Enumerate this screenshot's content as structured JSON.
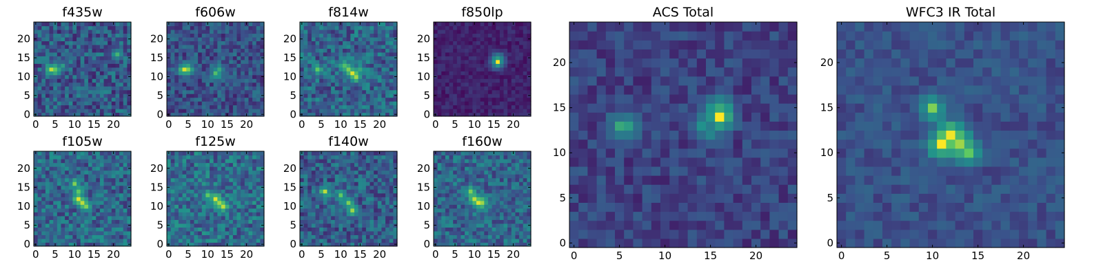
{
  "figure": {
    "colormap": "viridis",
    "colormap_stops": [
      "#440154",
      "#3b528b",
      "#21918c",
      "#5ec962",
      "#fde725"
    ]
  },
  "chart_data": [
    {
      "type": "heatmap",
      "title": "f435w",
      "grid_size": 25,
      "xlim": [
        0,
        24
      ],
      "ylim": [
        0,
        24
      ],
      "xticks": [
        0,
        5,
        10,
        15,
        20
      ],
      "yticks": [
        0,
        5,
        10,
        15,
        20
      ],
      "hotspots": [
        {
          "x": 4,
          "y": 12,
          "value": 0.9
        },
        {
          "x": 5,
          "y": 12,
          "value": 0.75
        },
        {
          "x": 7,
          "y": 13,
          "value": 0.55
        },
        {
          "x": 21,
          "y": 16,
          "value": 0.65
        },
        {
          "x": 12,
          "y": 11,
          "value": 0.4
        }
      ],
      "background_level": 0.28,
      "noise_level": 0.18
    },
    {
      "type": "heatmap",
      "title": "f606w",
      "grid_size": 25,
      "xlim": [
        0,
        24
      ],
      "ylim": [
        0,
        24
      ],
      "xticks": [
        0,
        5,
        10,
        15,
        20
      ],
      "yticks": [
        0,
        5,
        10,
        15,
        20
      ],
      "hotspots": [
        {
          "x": 4,
          "y": 12,
          "value": 0.95
        },
        {
          "x": 5,
          "y": 12,
          "value": 0.8
        },
        {
          "x": 12,
          "y": 11,
          "value": 0.7
        },
        {
          "x": 13,
          "y": 12,
          "value": 0.6
        },
        {
          "x": 13,
          "y": 10,
          "value": 0.5
        }
      ],
      "background_level": 0.25,
      "noise_level": 0.15
    },
    {
      "type": "heatmap",
      "title": "f814w",
      "grid_size": 25,
      "xlim": [
        0,
        24
      ],
      "ylim": [
        0,
        24
      ],
      "xticks": [
        0,
        5,
        10,
        15,
        20
      ],
      "yticks": [
        0,
        5,
        10,
        15,
        20
      ],
      "hotspots": [
        {
          "x": 13,
          "y": 11,
          "value": 0.95
        },
        {
          "x": 14,
          "y": 10,
          "value": 0.85
        },
        {
          "x": 12,
          "y": 12,
          "value": 0.8
        },
        {
          "x": 11,
          "y": 13,
          "value": 0.7
        },
        {
          "x": 4,
          "y": 12,
          "value": 0.75
        },
        {
          "x": 15,
          "y": 12,
          "value": 0.6
        }
      ],
      "background_level": 0.32,
      "noise_level": 0.18
    },
    {
      "type": "heatmap",
      "title": "f850lp",
      "grid_size": 25,
      "xlim": [
        0,
        24
      ],
      "ylim": [
        0,
        24
      ],
      "xticks": [
        0,
        5,
        10,
        15,
        20
      ],
      "yticks": [
        0,
        5,
        10,
        15,
        20
      ],
      "hotspots": [
        {
          "x": 16,
          "y": 14,
          "value": 1.0
        },
        {
          "x": 16,
          "y": 15,
          "value": 0.55
        }
      ],
      "background_level": 0.1,
      "noise_level": 0.07
    },
    {
      "type": "heatmap",
      "title": "f105w",
      "grid_size": 25,
      "xlim": [
        0,
        24
      ],
      "ylim": [
        0,
        24
      ],
      "xticks": [
        0,
        5,
        10,
        15,
        20
      ],
      "yticks": [
        0,
        5,
        10,
        15,
        20
      ],
      "hotspots": [
        {
          "x": 11,
          "y": 12,
          "value": 0.95
        },
        {
          "x": 12,
          "y": 11,
          "value": 0.9
        },
        {
          "x": 10,
          "y": 16,
          "value": 0.8
        },
        {
          "x": 13,
          "y": 10,
          "value": 0.8
        },
        {
          "x": 11,
          "y": 14,
          "value": 0.75
        }
      ],
      "background_level": 0.33,
      "noise_level": 0.18
    },
    {
      "type": "heatmap",
      "title": "f125w",
      "grid_size": 25,
      "xlim": [
        0,
        24
      ],
      "ylim": [
        0,
        24
      ],
      "xticks": [
        0,
        5,
        10,
        15,
        20
      ],
      "yticks": [
        0,
        5,
        10,
        15,
        20
      ],
      "hotspots": [
        {
          "x": 12,
          "y": 12,
          "value": 0.95
        },
        {
          "x": 14,
          "y": 10,
          "value": 0.9
        },
        {
          "x": 10,
          "y": 13,
          "value": 0.75
        },
        {
          "x": 13,
          "y": 11,
          "value": 0.85
        }
      ],
      "background_level": 0.35,
      "noise_level": 0.18
    },
    {
      "type": "heatmap",
      "title": "f140w",
      "grid_size": 25,
      "xlim": [
        0,
        24
      ],
      "ylim": [
        0,
        24
      ],
      "xticks": [
        0,
        5,
        10,
        15,
        20
      ],
      "yticks": [
        0,
        5,
        10,
        15,
        20
      ],
      "hotspots": [
        {
          "x": 6,
          "y": 14,
          "value": 0.9
        },
        {
          "x": 12,
          "y": 11,
          "value": 0.8
        },
        {
          "x": 13,
          "y": 9,
          "value": 0.85
        },
        {
          "x": 10,
          "y": 13,
          "value": 0.75
        }
      ],
      "background_level": 0.3,
      "noise_level": 0.17
    },
    {
      "type": "heatmap",
      "title": "f160w",
      "grid_size": 25,
      "xlim": [
        0,
        24
      ],
      "ylim": [
        0,
        24
      ],
      "xticks": [
        0,
        5,
        10,
        15,
        20
      ],
      "yticks": [
        0,
        5,
        10,
        15,
        20
      ],
      "hotspots": [
        {
          "x": 11,
          "y": 11,
          "value": 0.95
        },
        {
          "x": 10,
          "y": 12,
          "value": 0.9
        },
        {
          "x": 12,
          "y": 11,
          "value": 0.85
        },
        {
          "x": 9,
          "y": 14,
          "value": 0.8
        }
      ],
      "background_level": 0.33,
      "noise_level": 0.16
    },
    {
      "type": "heatmap",
      "title": "ACS Total",
      "grid_size": 25,
      "xlim": [
        0,
        24
      ],
      "ylim": [
        0,
        24
      ],
      "xticks": [
        0,
        5,
        10,
        15,
        20
      ],
      "yticks": [
        0,
        5,
        10,
        15,
        20
      ],
      "hotspots": [
        {
          "x": 16,
          "y": 14,
          "value": 1.0
        },
        {
          "x": 16,
          "y": 15,
          "value": 0.6
        },
        {
          "x": 5,
          "y": 13,
          "value": 0.6
        },
        {
          "x": 6,
          "y": 13,
          "value": 0.55
        },
        {
          "x": 14,
          "y": 13,
          "value": 0.5
        },
        {
          "x": 15,
          "y": 12,
          "value": 0.45
        }
      ],
      "background_level": 0.2,
      "noise_level": 0.1
    },
    {
      "type": "heatmap",
      "title": "WFC3 IR Total",
      "grid_size": 25,
      "xlim": [
        0,
        24
      ],
      "ylim": [
        0,
        24
      ],
      "xticks": [
        0,
        5,
        10,
        15,
        20
      ],
      "yticks": [
        0,
        5,
        10,
        15,
        20
      ],
      "hotspots": [
        {
          "x": 11,
          "y": 11,
          "value": 1.0
        },
        {
          "x": 12,
          "y": 12,
          "value": 0.98
        },
        {
          "x": 13,
          "y": 11,
          "value": 0.85
        },
        {
          "x": 10,
          "y": 15,
          "value": 0.8
        },
        {
          "x": 14,
          "y": 10,
          "value": 0.75
        }
      ],
      "background_level": 0.25,
      "noise_level": 0.08
    }
  ]
}
